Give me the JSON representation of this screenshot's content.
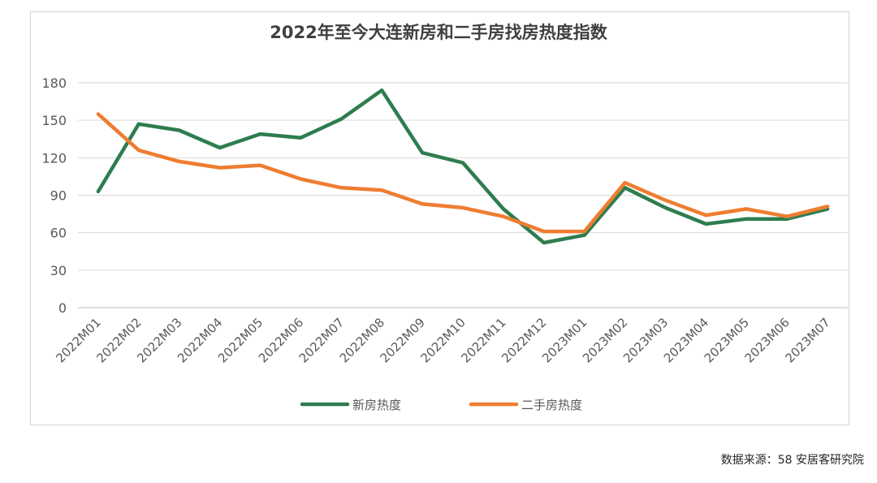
{
  "chart_data": {
    "type": "line",
    "title": "2022年至今大连新房和二手房找房热度指数",
    "categories": [
      "2022M01",
      "2022M02",
      "2022M03",
      "2022M04",
      "2022M05",
      "2022M06",
      "2022M07",
      "2022M08",
      "2022M09",
      "2022M10",
      "2022M11",
      "2022M12",
      "2023M01",
      "2023M02",
      "2023M03",
      "2023M04",
      "2023M05",
      "2023M06",
      "2023M07"
    ],
    "series": [
      {
        "name": "新房热度",
        "color": "#2e7d4f",
        "values": [
          93,
          147,
          142,
          128,
          139,
          136,
          151,
          174,
          124,
          116,
          79,
          52,
          58,
          96,
          80,
          67,
          71,
          71,
          79
        ]
      },
      {
        "name": "二手房热度",
        "color": "#ee7d31",
        "values": [
          155,
          126,
          117,
          112,
          114,
          103,
          96,
          94,
          83,
          80,
          73,
          61,
          61,
          100,
          86,
          74,
          79,
          73,
          81
        ]
      }
    ],
    "yticks": [
      0,
      30,
      60,
      90,
      120,
      150,
      180
    ],
    "ylim": [
      0,
      180
    ],
    "grid": true,
    "legend": "bottom-center",
    "source": "数据来源：58 安居客研究院"
  }
}
